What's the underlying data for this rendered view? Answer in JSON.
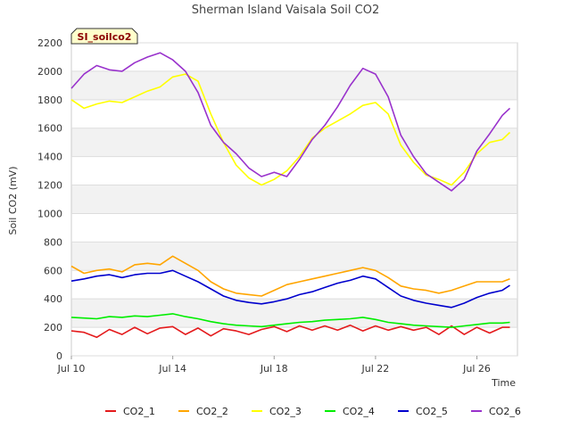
{
  "chart_data": {
    "type": "line",
    "title": "Sherman Island Vaisala Soil CO2",
    "tag": "SI_soilco2",
    "xlabel": "Time",
    "ylabel": "Soil CO2 (mV)",
    "xlim": [
      0,
      17.6
    ],
    "ylim": [
      0,
      2200
    ],
    "yticks": [
      0,
      200,
      400,
      600,
      800,
      1000,
      1200,
      1400,
      1600,
      1800,
      2000,
      2200
    ],
    "xticks": [
      {
        "day": 0,
        "label": "Jul 10"
      },
      {
        "day": 4,
        "label": "Jul 14"
      },
      {
        "day": 8,
        "label": "Jul 18"
      },
      {
        "day": 12,
        "label": "Jul 22"
      },
      {
        "day": 16,
        "label": "Jul 26"
      }
    ],
    "grid": true,
    "legend_position": "bottom",
    "series": [
      {
        "name": "CO2_1",
        "color": "#e41a1c",
        "x": [
          0,
          0.5,
          1,
          1.5,
          2,
          2.5,
          3,
          3.5,
          4,
          4.5,
          5,
          5.5,
          6,
          6.5,
          7,
          7.5,
          8,
          8.5,
          9,
          9.5,
          10,
          10.5,
          11,
          11.5,
          12,
          12.5,
          13,
          13.5,
          14,
          14.5,
          15,
          15.5,
          16,
          16.5,
          17,
          17.3
        ],
        "y": [
          175,
          165,
          130,
          185,
          150,
          200,
          155,
          195,
          205,
          150,
          195,
          140,
          190,
          175,
          150,
          185,
          205,
          170,
          210,
          180,
          210,
          180,
          215,
          175,
          210,
          180,
          205,
          180,
          200,
          150,
          210,
          150,
          200,
          160,
          200,
          200
        ]
      },
      {
        "name": "CO2_2",
        "color": "#ffa500",
        "x": [
          0,
          0.5,
          1,
          1.5,
          2,
          2.5,
          3,
          3.5,
          4,
          4.5,
          5,
          5.5,
          6,
          6.5,
          7,
          7.5,
          8,
          8.5,
          9,
          9.5,
          10,
          10.5,
          11,
          11.5,
          12,
          12.5,
          13,
          13.5,
          14,
          14.5,
          15,
          15.5,
          16,
          16.5,
          17,
          17.3
        ],
        "y": [
          630,
          580,
          600,
          610,
          590,
          640,
          650,
          640,
          700,
          650,
          600,
          520,
          470,
          440,
          430,
          420,
          460,
          500,
          520,
          540,
          560,
          580,
          600,
          620,
          600,
          550,
          490,
          470,
          460,
          440,
          460,
          490,
          520,
          520,
          520,
          540
        ]
      },
      {
        "name": "CO2_3",
        "color": "#ffff00",
        "x": [
          0,
          0.5,
          1,
          1.5,
          2,
          2.5,
          3,
          3.5,
          4,
          4.5,
          5,
          5.5,
          6,
          6.5,
          7,
          7.5,
          8,
          8.5,
          9,
          9.5,
          10,
          10.5,
          11,
          11.5,
          12,
          12.5,
          13,
          13.5,
          14,
          14.5,
          15,
          15.5,
          16,
          16.5,
          17,
          17.3
        ],
        "y": [
          1800,
          1740,
          1770,
          1790,
          1780,
          1820,
          1860,
          1890,
          1960,
          1980,
          1930,
          1700,
          1500,
          1340,
          1250,
          1200,
          1240,
          1300,
          1400,
          1530,
          1600,
          1650,
          1700,
          1760,
          1780,
          1700,
          1480,
          1360,
          1270,
          1240,
          1200,
          1290,
          1420,
          1500,
          1520,
          1570
        ]
      },
      {
        "name": "CO2_4",
        "color": "#00ee00",
        "x": [
          0,
          0.5,
          1,
          1.5,
          2,
          2.5,
          3,
          3.5,
          4,
          4.5,
          5,
          5.5,
          6,
          6.5,
          7,
          7.5,
          8,
          8.5,
          9,
          9.5,
          10,
          10.5,
          11,
          11.5,
          12,
          12.5,
          13,
          13.5,
          14,
          14.5,
          15,
          15.5,
          16,
          16.5,
          17,
          17.3
        ],
        "y": [
          270,
          265,
          260,
          275,
          270,
          280,
          275,
          285,
          295,
          275,
          260,
          240,
          225,
          215,
          210,
          205,
          215,
          225,
          235,
          240,
          250,
          255,
          260,
          270,
          255,
          235,
          225,
          215,
          210,
          205,
          200,
          210,
          220,
          230,
          230,
          235
        ]
      },
      {
        "name": "CO2_5",
        "color": "#0000cd",
        "x": [
          0,
          0.5,
          1,
          1.5,
          2,
          2.5,
          3,
          3.5,
          4,
          4.5,
          5,
          5.5,
          6,
          6.5,
          7,
          7.5,
          8,
          8.5,
          9,
          9.5,
          10,
          10.5,
          11,
          11.5,
          12,
          12.5,
          13,
          13.5,
          14,
          14.5,
          15,
          15.5,
          16,
          16.5,
          17,
          17.3
        ],
        "y": [
          525,
          540,
          560,
          570,
          550,
          570,
          580,
          580,
          600,
          560,
          520,
          470,
          420,
          390,
          375,
          365,
          380,
          400,
          430,
          450,
          480,
          510,
          530,
          560,
          540,
          480,
          420,
          390,
          370,
          355,
          340,
          370,
          410,
          440,
          460,
          495
        ]
      },
      {
        "name": "CO2_6",
        "color": "#9932cc",
        "x": [
          0,
          0.5,
          1,
          1.5,
          2,
          2.5,
          3,
          3.5,
          4,
          4.5,
          5,
          5.5,
          6,
          6.5,
          7,
          7.5,
          8,
          8.5,
          9,
          9.5,
          10,
          10.5,
          11,
          11.5,
          12,
          12.5,
          13,
          13.5,
          14,
          14.5,
          15,
          15.5,
          16,
          16.5,
          17,
          17.3
        ],
        "y": [
          1880,
          1980,
          2040,
          2010,
          2000,
          2060,
          2100,
          2130,
          2080,
          2000,
          1850,
          1620,
          1500,
          1420,
          1320,
          1260,
          1290,
          1260,
          1380,
          1520,
          1620,
          1750,
          1900,
          2020,
          1980,
          1820,
          1550,
          1400,
          1280,
          1220,
          1160,
          1240,
          1440,
          1560,
          1690,
          1740
        ]
      }
    ]
  }
}
